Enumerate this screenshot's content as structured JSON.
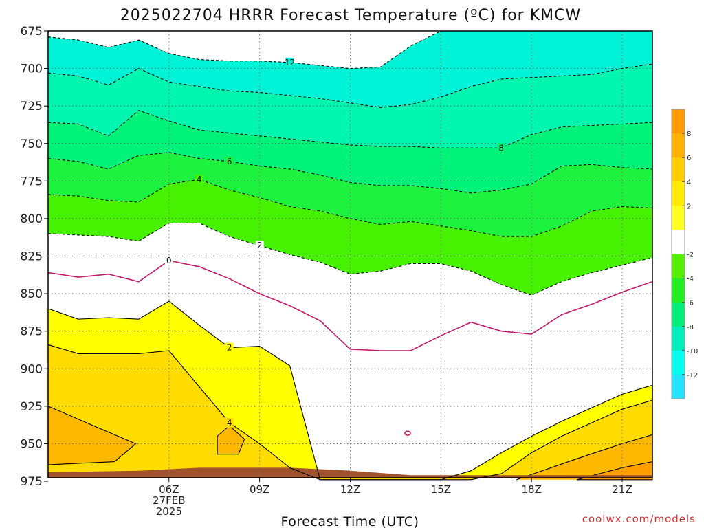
{
  "chart_data": {
    "type": "contour",
    "title": "2025022704 HRRR Forecast Temperature (ºC) for KMCW",
    "xlabel": "Forecast Time (UTC)",
    "ylabel": "",
    "credit": "coolwx.com/models",
    "x_hours": [
      2,
      3,
      4,
      5,
      6,
      7,
      8,
      9,
      10,
      11,
      12,
      13,
      14,
      15,
      16,
      17,
      18,
      19,
      20,
      21,
      22
    ],
    "xlim": [
      2,
      22
    ],
    "ylim": [
      972,
      675
    ],
    "yticks": [
      675,
      700,
      725,
      750,
      775,
      800,
      825,
      850,
      875,
      900,
      925,
      950,
      975
    ],
    "xticks": [
      {
        "hour": 6,
        "lines": [
          "06Z",
          "27FEB",
          "2025"
        ]
      },
      {
        "hour": 9,
        "lines": [
          "09Z"
        ]
      },
      {
        "hour": 12,
        "lines": [
          "12Z"
        ]
      },
      {
        "hour": 15,
        "lines": [
          "15Z"
        ]
      },
      {
        "hour": 18,
        "lines": [
          "18Z"
        ]
      },
      {
        "hour": 21,
        "lines": [
          "21Z"
        ]
      }
    ],
    "contour_levels": [
      -12,
      -10,
      -8,
      -6,
      -4,
      -2,
      0,
      2,
      4,
      6,
      8
    ],
    "isotherms": [
      {
        "level": -12,
        "label": "12",
        "label_hour": 10,
        "p": [
          679,
          681,
          686,
          681,
          690,
          694,
          695,
          695,
          696,
          698,
          700,
          699,
          685,
          675,
          675,
          675,
          675,
          675,
          675,
          675,
          675
        ]
      },
      {
        "level": -10,
        "p": [
          703,
          705,
          711,
          700,
          709,
          712,
          715,
          716,
          718,
          720,
          723,
          726,
          724,
          719,
          712,
          707,
          706,
          705,
          704,
          700,
          697
        ]
      },
      {
        "level": -8,
        "label": "8",
        "label_hour": 17,
        "p": [
          736,
          737,
          745,
          728,
          735,
          741,
          743,
          745,
          747,
          749,
          751,
          752,
          752,
          753,
          753,
          753,
          744,
          739,
          738,
          737,
          736
        ]
      },
      {
        "level": -6,
        "label": "6",
        "label_hour": 8,
        "p": [
          760,
          762,
          767,
          758,
          756,
          760,
          762,
          765,
          767,
          771,
          776,
          778,
          778,
          780,
          783,
          781,
          777,
          765,
          764,
          766,
          767
        ]
      },
      {
        "level": -4,
        "label": "4",
        "label_hour": 7,
        "p": [
          784,
          785,
          788,
          789,
          777,
          774,
          781,
          786,
          792,
          795,
          800,
          804,
          802,
          805,
          808,
          812,
          812,
          805,
          795,
          792,
          793
        ]
      },
      {
        "level": -2,
        "label": "2",
        "label_hour": 9,
        "p": [
          810,
          811,
          812,
          815,
          803,
          803,
          812,
          818,
          824,
          829,
          837,
          835,
          830,
          830,
          835,
          844,
          851,
          842,
          836,
          831,
          826
        ]
      },
      {
        "level": 0,
        "label": "0",
        "label_hour": 6,
        "p": [
          836,
          839,
          837,
          842,
          828,
          832,
          840,
          850,
          858,
          868,
          887,
          888,
          888,
          878,
          869,
          875,
          877,
          864,
          857,
          849,
          842
        ]
      },
      {
        "level": 2,
        "label": "2",
        "label_hour": 8,
        "p": [
          860,
          867,
          866,
          867,
          855,
          871,
          886,
          885,
          898,
          974,
          974,
          974,
          974,
          974,
          968,
          956,
          945,
          935,
          926,
          917,
          911
        ]
      },
      {
        "level": 4,
        "label": "4",
        "label_hour": 8,
        "p": [
          884,
          890,
          890,
          890,
          888,
          912,
          936,
          950,
          966,
          974,
          974,
          974,
          974,
          974,
          974,
          970,
          956,
          945,
          936,
          927,
          921
        ]
      }
    ],
    "fill_colors": [
      {
        "from": -99,
        "to": -12,
        "color": "#00e8ff"
      },
      {
        "from": -12,
        "to": -10,
        "color": "#00f3d6"
      },
      {
        "from": -10,
        "to": -8,
        "color": "#00f6ae"
      },
      {
        "from": -8,
        "to": -6,
        "color": "#00f278"
      },
      {
        "from": -6,
        "to": -4,
        "color": "#1df23f"
      },
      {
        "from": -4,
        "to": -2,
        "color": "#46f200"
      },
      {
        "from": -2,
        "to": 2,
        "color": "#ffffff"
      },
      {
        "from": 2,
        "to": 4,
        "color": "#ffff00"
      },
      {
        "from": 4,
        "to": 6,
        "color": "#ffdc00"
      },
      {
        "from": 6,
        "to": 8,
        "color": "#ffc000"
      },
      {
        "from": 8,
        "to": 99,
        "color": "#ffa000"
      }
    ],
    "ground_color": "#a0522d",
    "colorbar": {
      "colors": [
        "#ff9a00",
        "#ffb200",
        "#ffce00",
        "#ffea00",
        "#ffff22",
        "#ffffff",
        "#55f000",
        "#22ee22",
        "#00ee77",
        "#00eebb",
        "#00ffee",
        "#22e4ff"
      ],
      "ticks": [
        "8",
        "6",
        "4",
        "2",
        "-2",
        "-4",
        "-6",
        "-8",
        "-10",
        "-12"
      ]
    }
  }
}
